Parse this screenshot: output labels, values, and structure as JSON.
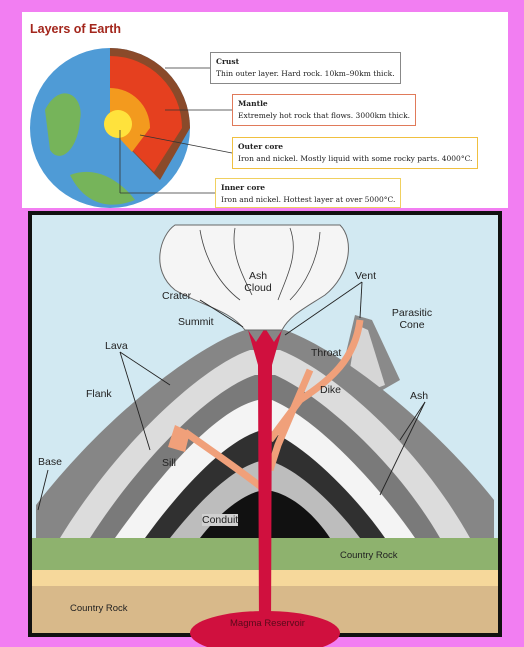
{
  "earth_layers": {
    "title": "Layers of Earth",
    "layers": [
      {
        "name": "Crust",
        "description": "Thin outer layer. Hard rock. 10km–90km thick."
      },
      {
        "name": "Mantle",
        "description": "Extremely hot rock that flows. 3000km thick."
      },
      {
        "name": "Outer core",
        "description": "Iron and nickel. Mostly liquid with some rocky parts. 4000°C."
      },
      {
        "name": "Inner core",
        "description": "Iron and nickel. Hottest layer at over 5000°C."
      }
    ]
  },
  "volcano": {
    "labels": [
      "Ash Cloud",
      "Crater",
      "Vent",
      "Summit",
      "Parasitic Cone",
      "Lava",
      "Throat",
      "Flank",
      "Dike",
      "Ash",
      "Base",
      "Sill",
      "Conduit",
      "Country Rock",
      "Country Rock",
      "Magma Reservoir"
    ]
  }
}
